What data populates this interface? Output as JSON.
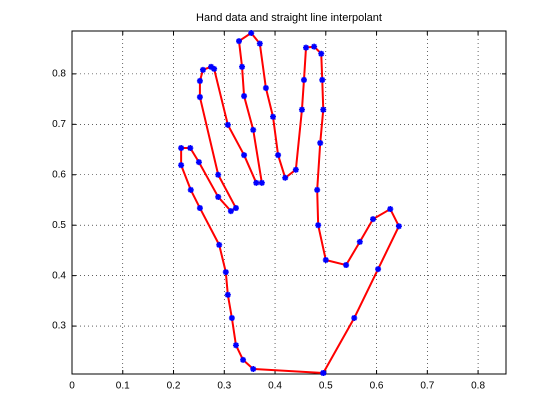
{
  "chart_data": {
    "type": "line",
    "title": "Hand data and straight line interpolant",
    "x": [
      0.495,
      0.357,
      0.337,
      0.323,
      0.315,
      0.307,
      0.303,
      0.29,
      0.252,
      0.234,
      0.215,
      0.215,
      0.233,
      0.25,
      0.288,
      0.313,
      0.323,
      0.288,
      0.252,
      0.252,
      0.258,
      0.274,
      0.28,
      0.307,
      0.339,
      0.363,
      0.374,
      0.357,
      0.339,
      0.335,
      0.329,
      0.353,
      0.37,
      0.382,
      0.396,
      0.406,
      0.42,
      0.441,
      0.453,
      0.457,
      0.461,
      0.477,
      0.491,
      0.493,
      0.495,
      0.489,
      0.483,
      0.485,
      0.5,
      0.54,
      0.567,
      0.593,
      0.627,
      0.644,
      0.603,
      0.556,
      0.495
    ],
    "series": [
      {
        "color": "#ff0000",
        "marker_color": "#0000ff",
        "values": [
          0.207,
          0.215,
          0.233,
          0.262,
          0.316,
          0.362,
          0.407,
          0.461,
          0.534,
          0.57,
          0.619,
          0.653,
          0.653,
          0.625,
          0.556,
          0.528,
          0.534,
          0.6,
          0.754,
          0.786,
          0.808,
          0.814,
          0.81,
          0.699,
          0.639,
          0.584,
          0.584,
          0.689,
          0.756,
          0.814,
          0.865,
          0.881,
          0.86,
          0.772,
          0.715,
          0.639,
          0.594,
          0.61,
          0.729,
          0.788,
          0.852,
          0.854,
          0.84,
          0.788,
          0.729,
          0.663,
          0.57,
          0.5,
          0.431,
          0.421,
          0.467,
          0.512,
          0.532,
          0.498,
          0.413,
          0.316,
          0.207
        ]
      }
    ],
    "xlim": [
      0,
      0.855
    ],
    "xticks": [
      0,
      0.1,
      0.2,
      0.3,
      0.4,
      0.5,
      0.6,
      0.7,
      0.8
    ],
    "ylim": [
      0.205,
      0.885
    ],
    "yticks": [
      0.3,
      0.4,
      0.5,
      0.6,
      0.7,
      0.8
    ],
    "grid": true
  }
}
